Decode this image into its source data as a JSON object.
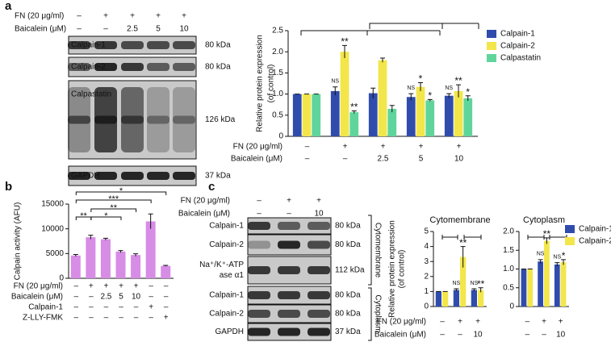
{
  "panel_labels": [
    "a",
    "b",
    "c"
  ],
  "blot_a": {
    "rows": [
      {
        "label": "FN (20 μg/ml)",
        "values": [
          "–",
          "+",
          "+",
          "+",
          "+"
        ]
      },
      {
        "label": "Baicalein (μM)",
        "values": [
          "–",
          "–",
          "2.5",
          "5",
          "10"
        ]
      }
    ],
    "bands": [
      {
        "label": [
          "Calpain-1"
        ],
        "size": "80 kDa"
      },
      {
        "label": [
          "Calpain-2"
        ],
        "size": "80 kDa"
      },
      {
        "label": [
          "Calpastatin"
        ],
        "size": "126 kDa"
      },
      {
        "label": [
          "GAPDH"
        ],
        "size": "37 kDa"
      }
    ]
  },
  "blot_c": {
    "rows": [
      {
        "label": "FN (20 μg/ml)",
        "values": [
          "–",
          "+",
          "+"
        ]
      },
      {
        "label": "Baicalein (μM)",
        "values": [
          "–",
          "–",
          "10"
        ]
      }
    ],
    "bands": [
      {
        "label": [
          "Calpain-1"
        ],
        "size": "80 kDa"
      },
      {
        "label": [
          "Calpain-2"
        ],
        "size": "80 kDa"
      },
      {
        "label": [
          "Na⁺/K⁺-ATP",
          "ase α1"
        ],
        "size": "112 kDa"
      },
      {
        "label": [
          "Calpain-1"
        ],
        "size": "80 kDa"
      },
      {
        "label": [
          "Calpain-2"
        ],
        "size": "80 kDa"
      },
      {
        "label": [
          "GAPDH"
        ],
        "size": "37 kDa"
      }
    ],
    "sections": [
      "Cytomembrane",
      "Cytoplasm"
    ]
  },
  "chart_data": [
    {
      "type": "bar",
      "ylabel": [
        "Relative protein expression",
        "(of control)"
      ],
      "ylim": [
        0,
        2.5
      ],
      "yticks": [
        0,
        0.5,
        {
          "value": 1,
          "label": "1.0"
        },
        1.5,
        {
          "value": 2,
          "label": "2.0"
        },
        2.5
      ],
      "category_rows": [
        {
          "label": "FN (20 μg/ml)",
          "values": [
            "–",
            "+",
            "+",
            "+",
            "+"
          ]
        },
        {
          "label": "Baicalein (μM)",
          "values": [
            "–",
            "–",
            "2.5",
            "5",
            "10"
          ]
        }
      ],
      "series": [
        {
          "name": "Calpain-1",
          "color": "#2f4cad",
          "values": [
            1.0,
            1.07,
            1.02,
            0.93,
            0.96
          ],
          "errors": [
            0,
            0.1,
            0.12,
            0.08,
            0.05
          ],
          "annotations": [
            null,
            "NS",
            null,
            "NS",
            "NS"
          ]
        },
        {
          "name": "Calpain-2",
          "color": "#f2e64a",
          "values": [
            1.0,
            2.0,
            1.8,
            1.17,
            1.07
          ],
          "errors": [
            0,
            0.15,
            0.05,
            0.1,
            0.15
          ],
          "annotations": [
            null,
            "**",
            null,
            "*",
            "**"
          ]
        },
        {
          "name": "Calpastatin",
          "color": "#5fd59b",
          "values": [
            1.0,
            0.57,
            0.65,
            0.85,
            0.9
          ],
          "errors": [
            0,
            0.03,
            0.08,
            0.02,
            0.06
          ],
          "annotations": [
            null,
            "**",
            null,
            "*",
            "*"
          ]
        }
      ]
    },
    {
      "type": "bar",
      "ylabel": [
        "Calpain activity (AFU)"
      ],
      "ylim": [
        0,
        15000
      ],
      "yticks": [
        0,
        5000,
        10000,
        15000
      ],
      "category_rows": [
        {
          "label": "FN (20 μg/ml)",
          "values": [
            "–",
            "+",
            "+",
            "+",
            "+",
            "–",
            "–"
          ]
        },
        {
          "label": "Baicalein (μM)",
          "values": [
            "–",
            "–",
            "2.5",
            "5",
            "10",
            "–",
            "–"
          ]
        },
        {
          "label": "Calpain-1",
          "values": [
            "–",
            "–",
            "–",
            "–",
            "–",
            "+",
            "–"
          ]
        },
        {
          "label": "Z-LLY-FMK",
          "values": [
            "–",
            "–",
            "–",
            "–",
            "–",
            "–",
            "+"
          ]
        }
      ],
      "series": [
        {
          "color": "#d78ce6",
          "values": [
            4600,
            8300,
            7900,
            5400,
            4700,
            11500,
            2500
          ],
          "errors": [
            200,
            400,
            200,
            200,
            250,
            1500,
            100
          ]
        }
      ],
      "brackets": [
        "**",
        "*",
        "**",
        "***",
        "*"
      ]
    },
    {
      "type": "bar",
      "title": "Cytomembrane",
      "ylabel": [
        "Relative protein expression",
        "(of control)"
      ],
      "ylim": [
        0,
        5
      ],
      "yticks": [
        0,
        1,
        2,
        3,
        4,
        5
      ],
      "category_rows": [
        {
          "label": "FN (20 μg/ml)",
          "values": [
            "–",
            "+",
            "+"
          ]
        },
        {
          "label": "Baicalein (μM)",
          "values": [
            "–",
            "–",
            "10"
          ]
        }
      ],
      "series": [
        {
          "color": "#2f4cad",
          "values": [
            1.0,
            1.1,
            1.1
          ],
          "errors": [
            0,
            0.08,
            0.08
          ],
          "annotations": [
            null,
            "NS",
            "NS"
          ]
        },
        {
          "color": "#f2e64a",
          "values": [
            1.0,
            3.3,
            1.1
          ],
          "errors": [
            0,
            0.7,
            0.15
          ],
          "annotations": [
            null,
            "**",
            "**"
          ]
        }
      ]
    },
    {
      "type": "bar",
      "title": "Cytoplasm",
      "ylim": [
        0,
        2
      ],
      "yticks": [
        0,
        0.5,
        {
          "value": 1,
          "label": "1.0"
        },
        1.5,
        {
          "value": 2,
          "label": "2.0"
        }
      ],
      "category_rows": [
        {
          "values": [
            "–",
            "+",
            "+"
          ]
        },
        {
          "values": [
            "–",
            "–",
            "10"
          ]
        }
      ],
      "series": [
        {
          "name": "Calpain-1",
          "color": "#2f4cad",
          "values": [
            1.0,
            1.2,
            1.12
          ],
          "errors": [
            0,
            0.05,
            0.05
          ],
          "annotations": [
            null,
            "NS",
            "NS"
          ]
        },
        {
          "name": "Calpain-2",
          "color": "#f2e64a",
          "values": [
            1.0,
            1.75,
            1.18
          ],
          "errors": [
            0,
            0.08,
            0.07
          ],
          "annotations": [
            null,
            "**",
            "*"
          ]
        }
      ]
    }
  ]
}
